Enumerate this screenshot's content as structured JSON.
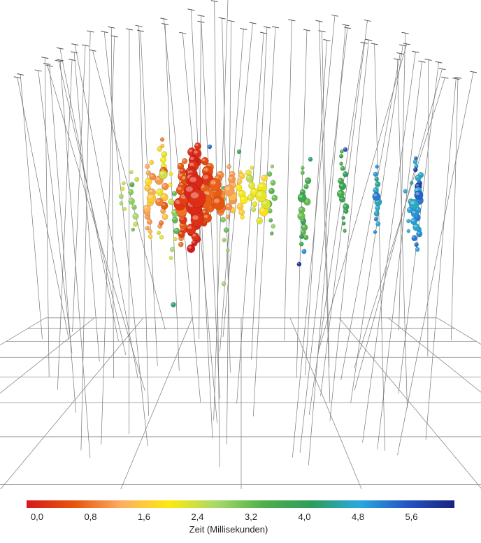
{
  "colorbar": {
    "title": "Zeit (Millisekunden)",
    "ticks": [
      "0,0",
      "0,8",
      "1,6",
      "2,4",
      "3,2",
      "4,0",
      "4,8",
      "5,6"
    ],
    "range": [
      0,
      6.4
    ],
    "colors": [
      "#d7191c",
      "#e6550d",
      "#fdae61",
      "#fee90d",
      "#a6d96a",
      "#4daf4a",
      "#2c9e5a",
      "#29a9e0",
      "#2455c4",
      "#1a237e"
    ]
  }
}
